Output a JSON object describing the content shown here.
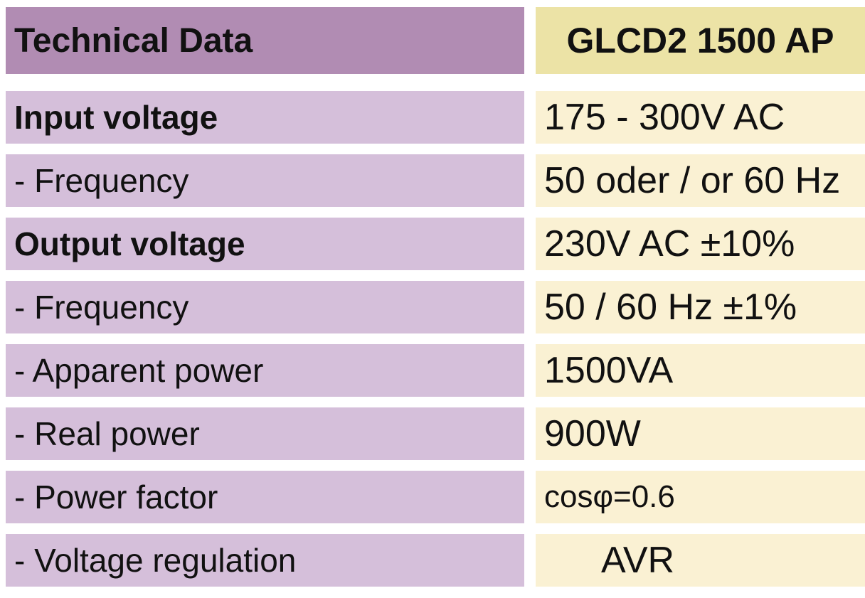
{
  "colors": {
    "header-left-bg": "#b18cb3",
    "header-right-bg": "#ece3a6",
    "body-left-bg": "#d5bfda",
    "body-right-bg": "#faf1d3",
    "text": "#111111"
  },
  "table": {
    "header": {
      "title": "Technical Data",
      "model": "GLCD2 1500 AP"
    },
    "rows": [
      {
        "label": "Input voltage",
        "value": "175 - 300V AC"
      },
      {
        "label": "- Frequency",
        "value": "50 oder / or 60 Hz"
      },
      {
        "label": "Output voltage",
        "value": "230V AC ±10%"
      },
      {
        "label": "- Frequency",
        "value": "50 / 60 Hz ±1%"
      },
      {
        "label": "- Apparent power",
        "value": "1500VA"
      },
      {
        "label": "- Real power",
        "value": "900W"
      },
      {
        "label": "- Power factor",
        "value": "cosφ=0.6"
      },
      {
        "label": "- Voltage regulation",
        "value": "AVR"
      }
    ]
  }
}
